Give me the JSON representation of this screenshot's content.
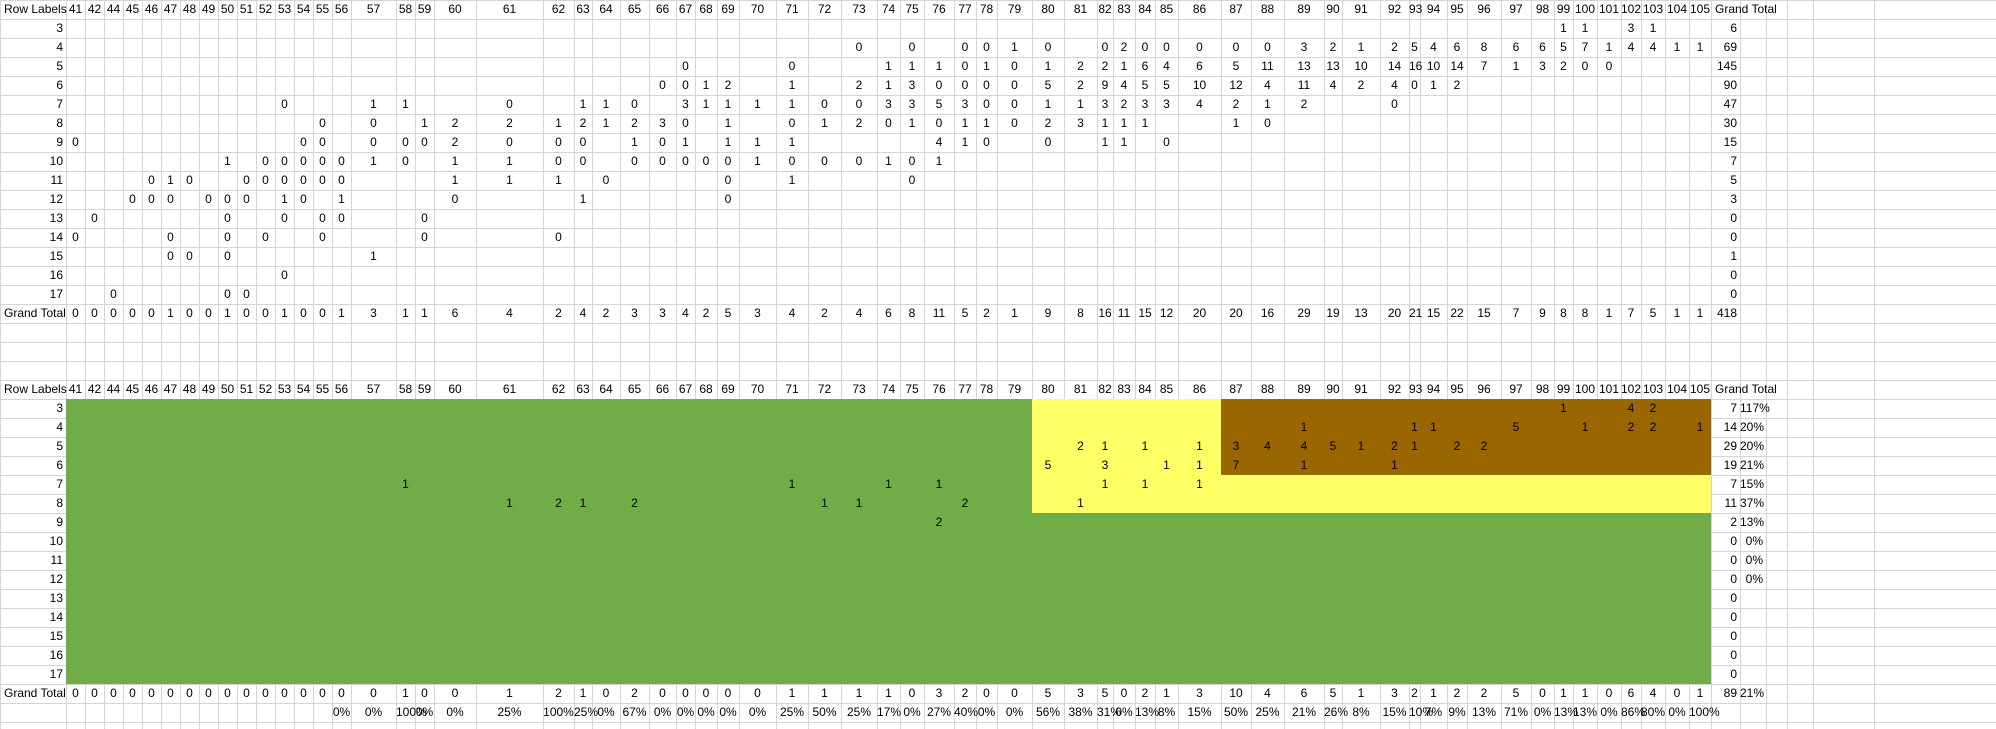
{
  "colors": {
    "green": "#70ad47",
    "yellow": "#ffff66",
    "brown": "#996600",
    "gridline": "#d4d4d4"
  },
  "pivot1": {
    "row_labels_header": "Row Labels",
    "grand_total_header": "Grand Total",
    "columns": [
      "41",
      "42",
      "44",
      "45",
      "46",
      "47",
      "48",
      "49",
      "50",
      "51",
      "52",
      "53",
      "54",
      "55",
      "56",
      "57",
      "58",
      "59",
      "60",
      "61",
      "62",
      "63",
      "64",
      "65",
      "66",
      "67",
      "68",
      "69",
      "70",
      "71",
      "72",
      "73",
      "74",
      "75",
      "76",
      "77",
      "78",
      "79",
      "80",
      "81",
      "82",
      "83",
      "84",
      "85",
      "86",
      "87",
      "88",
      "89",
      "90",
      "91",
      "92",
      "93",
      "94",
      "95",
      "96",
      "97",
      "98",
      "99",
      "100",
      "101",
      "102",
      "103",
      "104",
      "105"
    ],
    "rows": [
      {
        "label": "3",
        "cells": {
          "99": "1",
          "100": "1",
          "102": "3",
          "103": "1"
        },
        "total": "6"
      },
      {
        "label": "4",
        "cells": {
          "73": "0",
          "75": "0",
          "77": "0",
          "78": "0",
          "79": "1",
          "80": "0",
          "82": "0",
          "83": "2",
          "84": "0",
          "85": "0",
          "86": "0",
          "87": "0",
          "88": "0",
          "89": "3",
          "90": "2",
          "91": "1",
          "92": "2",
          "93": "5",
          "94": "4",
          "95": "6",
          "96": "8",
          "97": "6",
          "98": "6",
          "99": "5",
          "100": "7",
          "101": "1",
          "102": "4",
          "103": "4",
          "104": "1",
          "105": "1"
        },
        "total": "69"
      },
      {
        "label": "5",
        "cells": {
          "67": "0",
          "71": "0",
          "74": "1",
          "75": "1",
          "76": "1",
          "77": "0",
          "78": "1",
          "79": "0",
          "80": "1",
          "81": "2",
          "82": "2",
          "83": "1",
          "84": "6",
          "85": "4",
          "86": "6",
          "87": "5",
          "88": "11",
          "89": "13",
          "90": "13",
          "91": "10",
          "92": "14",
          "93": "16",
          "94": "10",
          "95": "14",
          "96": "7",
          "97": "1",
          "98": "3",
          "99": "2",
          "100": "0",
          "101": "0"
        },
        "total": "145"
      },
      {
        "label": "6",
        "cells": {
          "66": "0",
          "67": "0",
          "68": "1",
          "69": "2",
          "71": "1",
          "73": "2",
          "74": "1",
          "75": "3",
          "76": "0",
          "77": "0",
          "78": "0",
          "79": "0",
          "80": "5",
          "81": "2",
          "82": "9",
          "83": "4",
          "84": "5",
          "85": "5",
          "86": "10",
          "87": "12",
          "88": "4",
          "89": "11",
          "90": "4",
          "91": "2",
          "92": "4",
          "93": "0",
          "94": "1",
          "95": "2"
        },
        "total": "90"
      },
      {
        "label": "7",
        "cells": {
          "53": "0",
          "57": "1",
          "58": "1",
          "61": "0",
          "63": "1",
          "64": "1",
          "65": "0",
          "67": "3",
          "68": "1",
          "69": "1",
          "70": "1",
          "71": "1",
          "72": "0",
          "73": "0",
          "74": "3",
          "75": "3",
          "76": "5",
          "77": "3",
          "78": "0",
          "79": "0",
          "80": "1",
          "81": "1",
          "82": "3",
          "83": "2",
          "84": "3",
          "85": "3",
          "86": "4",
          "87": "2",
          "88": "1",
          "89": "2",
          "92": "0"
        },
        "total": "47"
      },
      {
        "label": "8",
        "cells": {
          "55": "0",
          "57": "0",
          "59": "1",
          "60": "2",
          "61": "2",
          "62": "1",
          "63": "2",
          "64": "1",
          "65": "2",
          "66": "3",
          "67": "0",
          "69": "1",
          "71": "0",
          "72": "1",
          "73": "2",
          "74": "0",
          "75": "1",
          "76": "0",
          "77": "1",
          "78": "1",
          "79": "0",
          "80": "2",
          "81": "3",
          "82": "1",
          "83": "1",
          "84": "1",
          "87": "1",
          "88": "0"
        },
        "total": "30"
      },
      {
        "label": "9",
        "cells": {
          "41": "0",
          "54": "0",
          "55": "0",
          "57": "0",
          "58": "0",
          "59": "0",
          "60": "2",
          "61": "0",
          "62": "0",
          "63": "0",
          "65": "1",
          "66": "0",
          "67": "1",
          "69": "1",
          "70": "1",
          "71": "1",
          "76": "4",
          "77": "1",
          "78": "0",
          "80": "0",
          "82": "1",
          "83": "1",
          "85": "0"
        },
        "total": "15"
      },
      {
        "label": "10",
        "cells": {
          "50": "1",
          "52": "0",
          "53": "0",
          "54": "0",
          "55": "0",
          "56": "0",
          "57": "1",
          "58": "0",
          "60": "1",
          "61": "1",
          "62": "0",
          "63": "0",
          "65": "0",
          "66": "0",
          "67": "0",
          "68": "0",
          "69": "0",
          "70": "1",
          "71": "0",
          "72": "0",
          "73": "0",
          "74": "1",
          "75": "0",
          "76": "1"
        },
        "total": "7"
      },
      {
        "label": "11",
        "cells": {
          "46": "0",
          "47": "1",
          "48": "0",
          "51": "0",
          "52": "0",
          "53": "0",
          "54": "0",
          "55": "0",
          "56": "0",
          "60": "1",
          "61": "1",
          "62": "1",
          "64": "0",
          "69": "0",
          "71": "1",
          "75": "0"
        },
        "total": "5"
      },
      {
        "label": "12",
        "cells": {
          "45": "0",
          "46": "0",
          "47": "0",
          "49": "0",
          "50": "0",
          "51": "0",
          "53": "1",
          "54": "0",
          "56": "1",
          "60": "0",
          "63": "1",
          "69": "0"
        },
        "total": "3"
      },
      {
        "label": "13",
        "cells": {
          "42": "0",
          "50": "0",
          "53": "0",
          "55": "0",
          "56": "0",
          "59": "0"
        },
        "total": "0"
      },
      {
        "label": "14",
        "cells": {
          "41": "0",
          "47": "0",
          "50": "0",
          "52": "0",
          "55": "0",
          "59": "0",
          "62": "0"
        },
        "total": "0"
      },
      {
        "label": "15",
        "cells": {
          "47": "0",
          "48": "0",
          "50": "0",
          "57": "1"
        },
        "total": "1"
      },
      {
        "label": "16",
        "cells": {
          "53": "0"
        },
        "total": "0"
      },
      {
        "label": "17",
        "cells": {
          "44": "0",
          "50": "0",
          "51": "0"
        },
        "total": "0"
      }
    ],
    "grand_total": {
      "label": "Grand Total",
      "cells": {
        "41": "0",
        "42": "0",
        "44": "0",
        "45": "0",
        "46": "0",
        "47": "1",
        "48": "0",
        "49": "0",
        "50": "1",
        "51": "0",
        "52": "0",
        "53": "1",
        "54": "0",
        "55": "0",
        "56": "1",
        "57": "3",
        "58": "1",
        "59": "1",
        "60": "6",
        "61": "4",
        "62": "2",
        "63": "4",
        "64": "2",
        "65": "3",
        "66": "3",
        "67": "4",
        "68": "2",
        "69": "5",
        "70": "3",
        "71": "4",
        "72": "2",
        "73": "4",
        "74": "6",
        "75": "8",
        "76": "11",
        "77": "5",
        "78": "2",
        "79": "1",
        "80": "9",
        "81": "8",
        "82": "16",
        "83": "11",
        "84": "15",
        "85": "12",
        "86": "20",
        "87": "20",
        "88": "16",
        "89": "29",
        "90": "19",
        "91": "13",
        "92": "20",
        "93": "21",
        "94": "15",
        "95": "22",
        "96": "15",
        "97": "7",
        "98": "9",
        "99": "8",
        "100": "8",
        "101": "1",
        "102": "7",
        "103": "5",
        "104": "1",
        "105": "1"
      },
      "total": "418"
    }
  },
  "pivot2": {
    "row_labels_header": "Row Labels",
    "grand_total_header": "Grand Total",
    "rows": [
      {
        "label": "3",
        "cells": {
          "99": "1",
          "102": "4",
          "103": "2"
        },
        "total": "7",
        "pct": "117%"
      },
      {
        "label": "4",
        "cells": {
          "89": "1",
          "93": "1",
          "94": "1",
          "97": "5",
          "100": "1",
          "102": "2",
          "103": "2",
          "105": "1"
        },
        "total": "14",
        "pct": "20%"
      },
      {
        "label": "5",
        "cells": {
          "81": "2",
          "82": "1",
          "84": "1",
          "86": "1",
          "87": "3",
          "88": "4",
          "89": "4",
          "90": "5",
          "91": "1",
          "92": "2",
          "93": "1",
          "95": "2",
          "96": "2"
        },
        "total": "29",
        "pct": "20%"
      },
      {
        "label": "6",
        "cells": {
          "80": "5",
          "82": "3",
          "85": "1",
          "86": "1",
          "87": "7",
          "89": "1",
          "92": "1"
        },
        "total": "19",
        "pct": "21%"
      },
      {
        "label": "7",
        "cells": {
          "58": "1",
          "71": "1",
          "74": "1",
          "76": "1",
          "82": "1",
          "84": "1",
          "86": "1"
        },
        "total": "7",
        "pct": "15%"
      },
      {
        "label": "8",
        "cells": {
          "61": "1",
          "62": "2",
          "63": "1",
          "65": "2",
          "72": "1",
          "73": "1",
          "77": "2",
          "81": "1"
        },
        "total": "11",
        "pct": "37%"
      },
      {
        "label": "9",
        "cells": {
          "76": "2"
        },
        "total": "2",
        "pct": "13%"
      },
      {
        "label": "10",
        "cells": {},
        "total": "0",
        "pct": "0%"
      },
      {
        "label": "11",
        "cells": {},
        "total": "0",
        "pct": "0%"
      },
      {
        "label": "12",
        "cells": {},
        "total": "0",
        "pct": "0%"
      },
      {
        "label": "13",
        "cells": {},
        "total": "0",
        "pct": ""
      },
      {
        "label": "14",
        "cells": {},
        "total": "0",
        "pct": ""
      },
      {
        "label": "15",
        "cells": {},
        "total": "0",
        "pct": ""
      },
      {
        "label": "16",
        "cells": {},
        "total": "0",
        "pct": ""
      },
      {
        "label": "17",
        "cells": {},
        "total": "0",
        "pct": ""
      }
    ],
    "grand_total": {
      "label": "Grand Total",
      "cells": {
        "41": "0",
        "42": "0",
        "44": "0",
        "45": "0",
        "46": "0",
        "47": "0",
        "48": "0",
        "49": "0",
        "50": "0",
        "51": "0",
        "52": "0",
        "53": "0",
        "54": "0",
        "55": "0",
        "56": "0",
        "57": "0",
        "58": "1",
        "59": "0",
        "60": "0",
        "61": "1",
        "62": "2",
        "63": "1",
        "64": "0",
        "65": "2",
        "66": "0",
        "67": "0",
        "68": "0",
        "69": "0",
        "70": "0",
        "71": "1",
        "72": "1",
        "73": "1",
        "74": "1",
        "75": "0",
        "76": "3",
        "77": "2",
        "78": "0",
        "79": "0",
        "80": "5",
        "81": "3",
        "82": "5",
        "83": "0",
        "84": "2",
        "85": "1",
        "86": "3",
        "87": "10",
        "88": "4",
        "89": "6",
        "90": "5",
        "91": "1",
        "92": "3",
        "93": "2",
        "94": "1",
        "95": "2",
        "96": "2",
        "97": "5",
        "98": "0",
        "99": "1",
        "100": "1",
        "101": "0",
        "102": "6",
        "103": "4",
        "104": "0",
        "105": "1"
      },
      "total": "89",
      "pct": "21%"
    },
    "pct_row": {
      "56": "0%",
      "57": "0%",
      "58": "100%",
      "59": "0%",
      "60": "0%",
      "61": "25%",
      "62": "100%",
      "63": "25%",
      "64": "0%",
      "65": "67%",
      "66": "0%",
      "67": "0%",
      "68": "0%",
      "69": "0%",
      "70": "0%",
      "71": "25%",
      "72": "50%",
      "73": "25%",
      "74": "17%",
      "75": "0%",
      "76": "27%",
      "77": "40%",
      "78": "0%",
      "79": "0%",
      "80": "56%",
      "81": "38%",
      "82": "31%",
      "83": "0%",
      "84": "13%",
      "85": "8%",
      "86": "15%",
      "87": "50%",
      "88": "25%",
      "89": "21%",
      "90": "26%",
      "91": "8%",
      "92": "15%",
      "93": "10%",
      "94": "7%",
      "95": "9%",
      "96": "13%",
      "97": "71%",
      "98": "0%",
      "99": "13%",
      "100": "13%",
      "101": "0%",
      "102": "86%",
      "103": "80%",
      "104": "0%",
      "105": "100%"
    }
  }
}
